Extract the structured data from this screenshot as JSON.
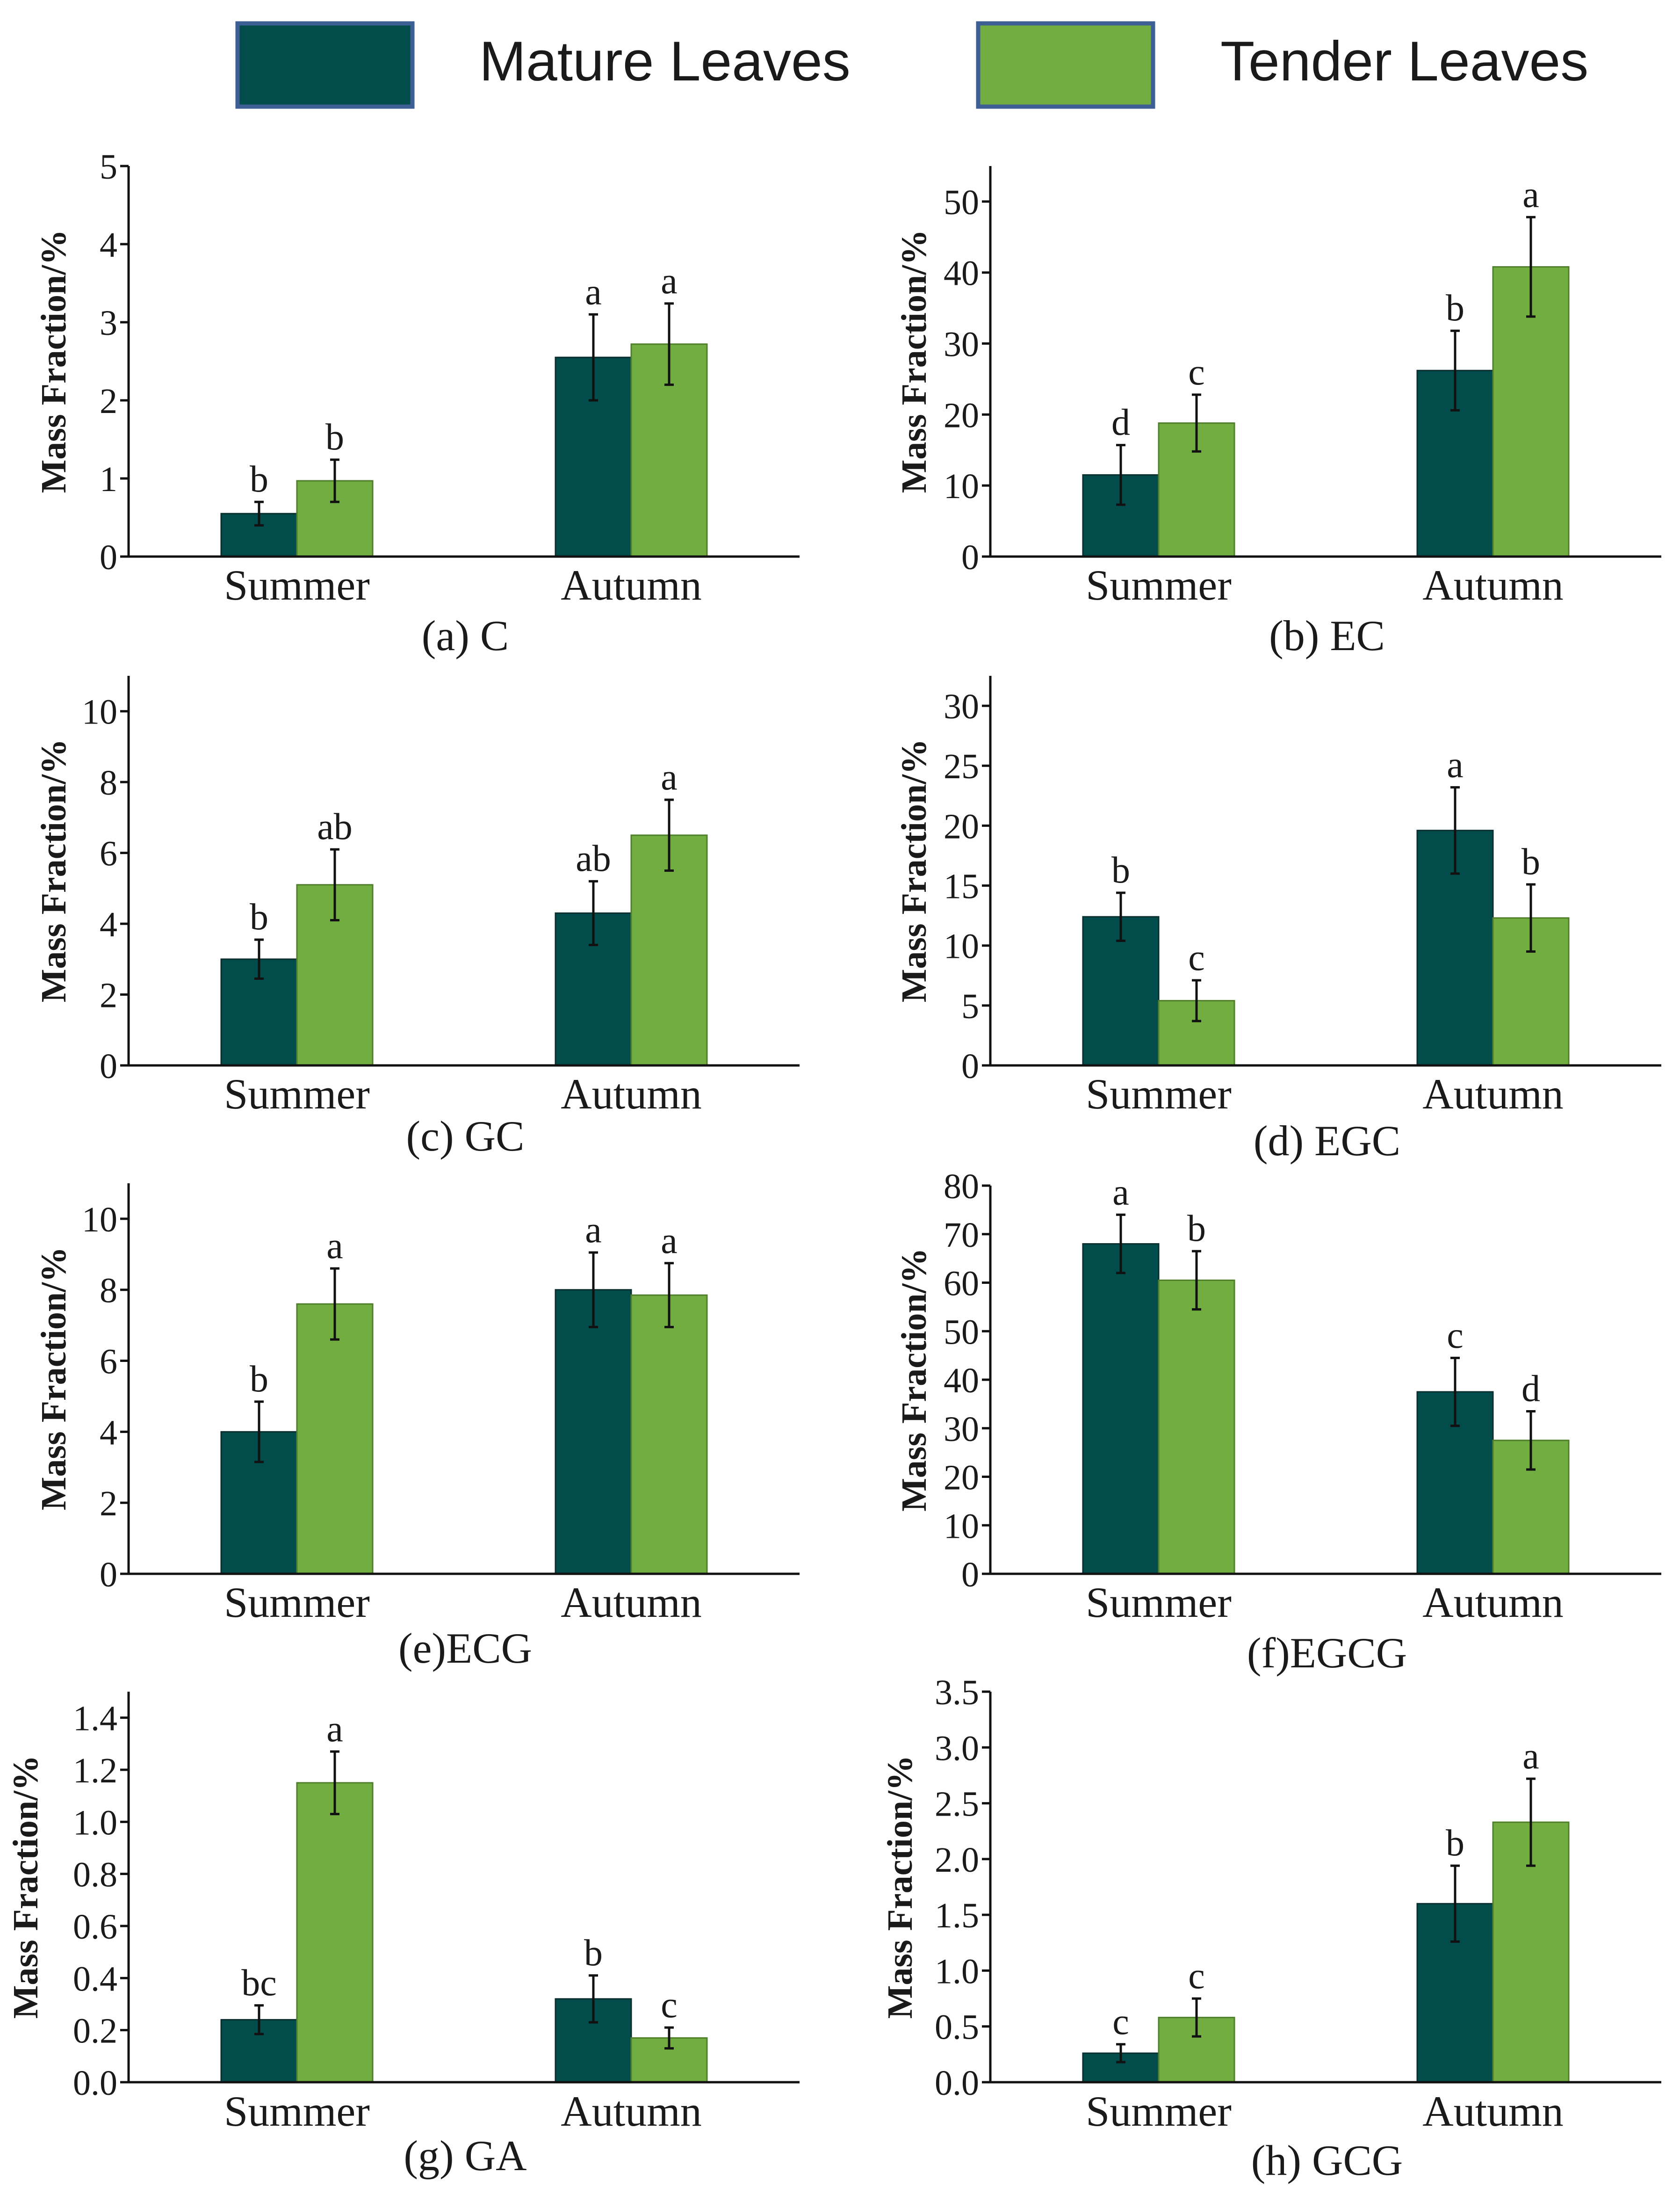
{
  "legend": {
    "items": [
      {
        "label": "Mature Leaves",
        "color": "#034c4c"
      },
      {
        "label": "Tender Leaves",
        "color": "#72ad41"
      }
    ],
    "border_color": "#3d5f93"
  },
  "chart_data": [
    {
      "type": "bar",
      "caption": "(a) C",
      "ylabel": "Mass Fraction/%",
      "categories": [
        "Summer",
        "Autumn"
      ],
      "ylim": [
        0,
        5
      ],
      "yticks": [
        0,
        1,
        2,
        3,
        4,
        5
      ],
      "ytick_labels": [
        "0",
        "1",
        "2",
        "3",
        "4",
        "5"
      ],
      "series": [
        {
          "name": "Mature Leaves",
          "values": [
            0.55,
            2.55
          ],
          "errors": [
            0.15,
            0.55
          ],
          "letters": [
            "b",
            "a"
          ]
        },
        {
          "name": "Tender Leaves",
          "values": [
            0.97,
            2.72
          ],
          "errors": [
            0.27,
            0.52
          ],
          "letters": [
            "b",
            "a"
          ]
        }
      ]
    },
    {
      "type": "bar",
      "caption": "(b) EC",
      "ylabel": "Mass Fraction/%",
      "categories": [
        "Summer",
        "Autumn"
      ],
      "ylim": [
        0,
        55
      ],
      "yticks": [
        0,
        10,
        20,
        30,
        40,
        50
      ],
      "ytick_labels": [
        "0",
        "10",
        "20",
        "30",
        "40",
        "50"
      ],
      "series": [
        {
          "name": "Mature Leaves",
          "values": [
            11.5,
            26.2
          ],
          "errors": [
            4.2,
            5.6
          ],
          "letters": [
            "d",
            "b"
          ]
        },
        {
          "name": "Tender Leaves",
          "values": [
            18.8,
            40.8
          ],
          "errors": [
            4.0,
            7.0
          ],
          "letters": [
            "c",
            "a"
          ]
        }
      ]
    },
    {
      "type": "bar",
      "caption": "(c) GC",
      "ylabel": "Mass Fraction/%",
      "categories": [
        "Summer",
        "Autumn"
      ],
      "ylim": [
        0,
        11
      ],
      "yticks": [
        0,
        2,
        4,
        6,
        8,
        10
      ],
      "ytick_labels": [
        "0",
        "2",
        "4",
        "6",
        "8",
        "10"
      ],
      "series": [
        {
          "name": "Mature Leaves",
          "values": [
            3.0,
            4.3
          ],
          "errors": [
            0.55,
            0.9
          ],
          "letters": [
            "b",
            "ab"
          ]
        },
        {
          "name": "Tender Leaves",
          "values": [
            5.1,
            6.5
          ],
          "errors": [
            1.0,
            1.0
          ],
          "letters": [
            "ab",
            "a"
          ]
        }
      ]
    },
    {
      "type": "bar",
      "caption": "(d) EGC",
      "ylabel": "Mass Fraction/%",
      "categories": [
        "Summer",
        "Autumn"
      ],
      "ylim": [
        0,
        32.5
      ],
      "yticks": [
        0,
        5,
        10,
        15,
        20,
        25,
        30
      ],
      "ytick_labels": [
        "0",
        "5",
        "10",
        "15",
        "20",
        "25",
        "30"
      ],
      "series": [
        {
          "name": "Mature Leaves",
          "values": [
            12.4,
            19.6
          ],
          "errors": [
            2.0,
            3.6
          ],
          "letters": [
            "b",
            "a"
          ]
        },
        {
          "name": "Tender Leaves",
          "values": [
            5.4,
            12.3
          ],
          "errors": [
            1.7,
            2.8
          ],
          "letters": [
            "c",
            "b"
          ]
        }
      ]
    },
    {
      "type": "bar",
      "caption": "(e)ECG",
      "ylabel": "Mass Fraction/%",
      "categories": [
        "Summer",
        "Autumn"
      ],
      "ylim": [
        0,
        11
      ],
      "yticks": [
        0,
        2,
        4,
        6,
        8,
        10
      ],
      "ytick_labels": [
        "0",
        "2",
        "4",
        "6",
        "8",
        "10"
      ],
      "series": [
        {
          "name": "Mature Leaves",
          "values": [
            4.0,
            8.0
          ],
          "errors": [
            0.85,
            1.05
          ],
          "letters": [
            "b",
            "a"
          ]
        },
        {
          "name": "Tender Leaves",
          "values": [
            7.6,
            7.85
          ],
          "errors": [
            1.0,
            0.9
          ],
          "letters": [
            "a",
            "a"
          ]
        }
      ]
    },
    {
      "type": "bar",
      "caption": "(f)EGCG",
      "ylabel": "Mass Fraction/%",
      "categories": [
        "Summer",
        "Autumn"
      ],
      "ylim": [
        0,
        80
      ],
      "yticks": [
        0,
        10,
        20,
        30,
        40,
        50,
        60,
        70,
        80
      ],
      "ytick_labels": [
        "0",
        "10",
        "20",
        "30",
        "40",
        "50",
        "60",
        "70",
        "80"
      ],
      "series": [
        {
          "name": "Mature Leaves",
          "values": [
            68,
            37.5
          ],
          "errors": [
            6.0,
            7.0
          ],
          "letters": [
            "a",
            "c"
          ]
        },
        {
          "name": "Tender Leaves",
          "values": [
            60.5,
            27.5
          ],
          "errors": [
            6.0,
            6.0
          ],
          "letters": [
            "b",
            "d"
          ]
        }
      ]
    },
    {
      "type": "bar",
      "caption": "(g) GA",
      "ylabel": "Mass Fraction/%",
      "categories": [
        "Summer",
        "Autumn"
      ],
      "ylim": [
        0,
        1.5
      ],
      "yticks": [
        0,
        0.2,
        0.4,
        0.6,
        0.8,
        1.0,
        1.2,
        1.4
      ],
      "ytick_labels": [
        "0.0",
        "0.2",
        "0.4",
        "0.6",
        "0.8",
        "1.0",
        "1.2",
        "1.4"
      ],
      "series": [
        {
          "name": "Mature Leaves",
          "values": [
            0.24,
            0.32
          ],
          "errors": [
            0.055,
            0.09
          ],
          "letters": [
            "bc",
            "b"
          ]
        },
        {
          "name": "Tender Leaves",
          "values": [
            1.15,
            0.17
          ],
          "errors": [
            0.12,
            0.04
          ],
          "letters": [
            "a",
            "c"
          ]
        }
      ]
    },
    {
      "type": "bar",
      "caption": "(h) GCG",
      "ylabel": "Mass Fraction/%",
      "categories": [
        "Summer",
        "Autumn"
      ],
      "ylim": [
        0,
        3.5
      ],
      "yticks": [
        0,
        0.5,
        1.0,
        1.5,
        2.0,
        2.5,
        3.0,
        3.5
      ],
      "ytick_labels": [
        "0.0",
        "0.5",
        "1.0",
        "1.5",
        "2.0",
        "2.5",
        "3.0",
        "3.5"
      ],
      "series": [
        {
          "name": "Mature Leaves",
          "values": [
            0.26,
            1.6
          ],
          "errors": [
            0.08,
            0.34
          ],
          "letters": [
            "c",
            "b"
          ]
        },
        {
          "name": "Tender Leaves",
          "values": [
            0.58,
            2.33
          ],
          "errors": [
            0.17,
            0.39
          ],
          "letters": [
            "c",
            "a"
          ]
        }
      ]
    }
  ]
}
